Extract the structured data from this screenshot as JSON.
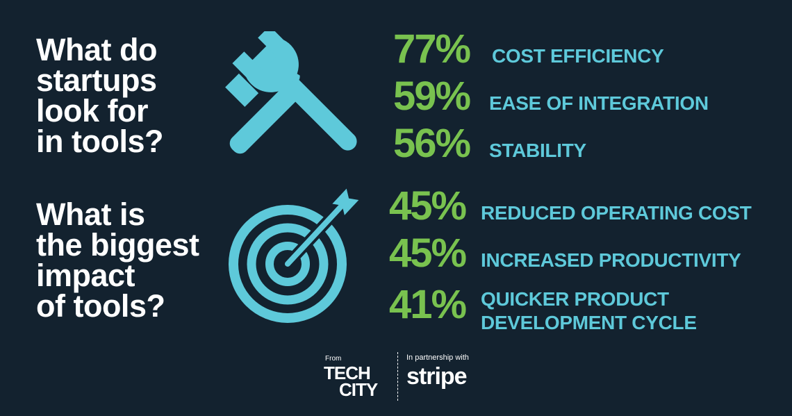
{
  "questions": {
    "q1": [
      "What do",
      "startups",
      "look for",
      "in tools?"
    ],
    "q2": [
      "What is",
      "the biggest",
      "impact",
      "of tools?"
    ]
  },
  "stats_q1": [
    {
      "value": "77%",
      "label": "COST EFFICIENCY"
    },
    {
      "value": "59%",
      "label": "EASE OF INTEGRATION"
    },
    {
      "value": "56%",
      "label": "STABILITY"
    }
  ],
  "stats_q2": [
    {
      "value": "45%",
      "label": "REDUCED OPERATING COST"
    },
    {
      "value": "45%",
      "label": "INCREASED PRODUCTIVITY"
    },
    {
      "value": "41%",
      "label_lines": [
        "QUICKER PRODUCT",
        "DEVELOPMENT CYCLE"
      ]
    }
  ],
  "footer": {
    "from": "From",
    "techcity_line1": "TECH",
    "techcity_line2": "CITY",
    "partnership": "In partnership with",
    "stripe": "stripe"
  },
  "colors": {
    "background": "#13222f",
    "accent_green": "#79c24f",
    "accent_teal": "#5ec9da",
    "text": "#ffffff"
  },
  "icons": [
    "hammer-wrench-icon",
    "target-arrow-icon"
  ]
}
